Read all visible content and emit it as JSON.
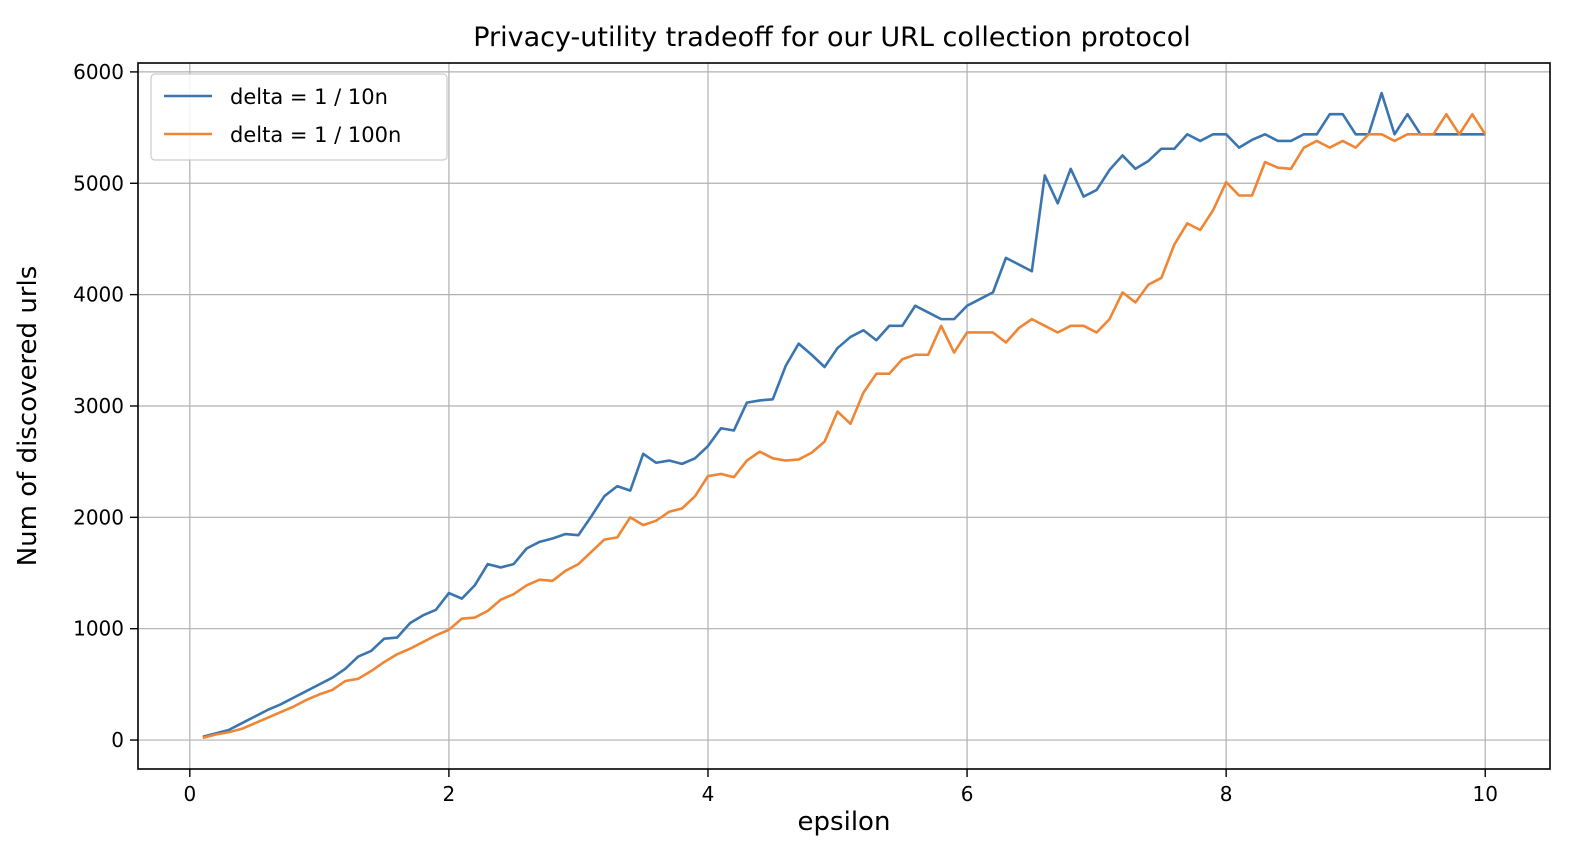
{
  "chart_data": {
    "type": "line",
    "title": "Privacy-utility tradeoff for our URL collection protocol",
    "xlabel": "epsilon",
    "ylabel": "Num of discovered urls",
    "xlim": [
      -0.4,
      10.5
    ],
    "ylim": [
      -260,
      6080
    ],
    "xticks": [
      "0",
      "2",
      "4",
      "6",
      "8",
      "10"
    ],
    "yticks": [
      "0",
      "1000",
      "2000",
      "3000",
      "4000",
      "5000",
      "6000"
    ],
    "grid": true,
    "legend_position": "top-left",
    "x": [
      0.1,
      0.2,
      0.3,
      0.4,
      0.5,
      0.6,
      0.7,
      0.8,
      0.9,
      1.0,
      1.1,
      1.2,
      1.3,
      1.4,
      1.5,
      1.6,
      1.7,
      1.8,
      1.9,
      2.0,
      2.1,
      2.2,
      2.3,
      2.4,
      2.5,
      2.6,
      2.7,
      2.8,
      2.9,
      3.0,
      3.1,
      3.2,
      3.3,
      3.4,
      3.5,
      3.6,
      3.7,
      3.8,
      3.9,
      4.0,
      4.1,
      4.2,
      4.3,
      4.4,
      4.5,
      4.6,
      4.7,
      4.8,
      4.9,
      5.0,
      5.1,
      5.2,
      5.3,
      5.4,
      5.5,
      5.6,
      5.7,
      5.8,
      5.9,
      6.0,
      6.1,
      6.2,
      6.3,
      6.4,
      6.5,
      6.6,
      6.7,
      6.8,
      6.9,
      7.0,
      7.1,
      7.2,
      7.3,
      7.4,
      7.5,
      7.6,
      7.7,
      7.8,
      7.9,
      8.0,
      8.1,
      8.2,
      8.3,
      8.4,
      8.5,
      8.6,
      8.7,
      8.8,
      8.9,
      9.0,
      9.1,
      9.2,
      9.3,
      9.4,
      9.5,
      9.6,
      9.7,
      9.8,
      9.9,
      10.0
    ],
    "series": [
      {
        "name": "delta = 1 / 10n",
        "color": "#3b75af",
        "values": [
          30,
          60,
          90,
          150,
          210,
          270,
          320,
          380,
          440,
          500,
          560,
          640,
          750,
          800,
          910,
          920,
          1050,
          1120,
          1170,
          1320,
          1270,
          1390,
          1580,
          1550,
          1580,
          1720,
          1780,
          1810,
          1850,
          1840,
          2010,
          2190,
          2280,
          2240,
          2570,
          2490,
          2510,
          2480,
          2530,
          2640,
          2800,
          2780,
          3030,
          3050,
          3060,
          3360,
          3560,
          3460,
          3350,
          3520,
          3620,
          3680,
          3590,
          3720,
          3720,
          3900,
          3840,
          3780,
          3780,
          3900,
          3960,
          4020,
          4330,
          4270,
          4210,
          5070,
          4820,
          5130,
          4880,
          4940,
          5120,
          5250,
          5130,
          5200,
          5310,
          5310,
          5440,
          5380,
          5440,
          5440,
          5320,
          5390,
          5440,
          5380,
          5380,
          5440,
          5440,
          5620,
          5620,
          5440,
          5440,
          5810,
          5440,
          5620,
          5440,
          5440,
          5440,
          5440,
          5440,
          5440
        ]
      },
      {
        "name": "delta = 1 / 100n",
        "color": "#ef8636",
        "values": [
          20,
          50,
          70,
          100,
          150,
          200,
          250,
          300,
          360,
          410,
          450,
          530,
          550,
          620,
          700,
          770,
          820,
          880,
          940,
          990,
          1090,
          1100,
          1160,
          1260,
          1310,
          1390,
          1440,
          1430,
          1520,
          1580,
          1690,
          1800,
          1820,
          2000,
          1930,
          1970,
          2050,
          2080,
          2190,
          2370,
          2390,
          2360,
          2510,
          2590,
          2530,
          2510,
          2520,
          2580,
          2680,
          2950,
          2840,
          3120,
          3290,
          3290,
          3420,
          3460,
          3460,
          3720,
          3480,
          3660,
          3660,
          3660,
          3570,
          3700,
          3780,
          3720,
          3660,
          3720,
          3720,
          3660,
          3780,
          4020,
          3930,
          4090,
          4150,
          4450,
          4640,
          4580,
          4760,
          5010,
          4890,
          4890,
          5190,
          5140,
          5130,
          5320,
          5380,
          5320,
          5380,
          5320,
          5440,
          5440,
          5380,
          5440,
          5440,
          5440,
          5620,
          5440,
          5620,
          5440
        ]
      }
    ]
  }
}
